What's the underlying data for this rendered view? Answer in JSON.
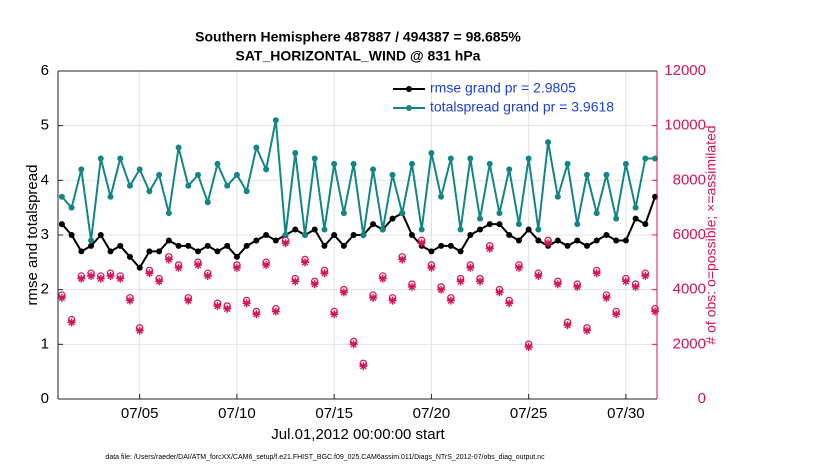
{
  "chart_data": {
    "type": "line",
    "title": "Southern Hemisphere 487887 / 494387 = 98.685%",
    "subtitle": "SAT_HORIZONTAL_WIND @ 831 hPa",
    "x_label": "Jul.01,2012 00:00:00 start",
    "y_label": "rmse and totalspread",
    "y2_label": "# of obs: o=possible; ×=assimilated",
    "footnote": "data file: /Users/raeder/DAI/ATM_forcXX/CAM6_setup/f.e21.FHIST_BGC.f09_025.CAM6assim.011/Diags_NTrS_2012-07/obs_diag_output.nc",
    "grid": true,
    "legend": "upper right",
    "xlim": [
      0.8,
      31.6
    ],
    "xticks": [
      {
        "value": 5,
        "label": "07/05"
      },
      {
        "value": 10,
        "label": "07/10"
      },
      {
        "value": 15,
        "label": "07/15"
      },
      {
        "value": 20,
        "label": "07/20"
      },
      {
        "value": 25,
        "label": "07/25"
      },
      {
        "value": 30,
        "label": "07/30"
      }
    ],
    "ylim": [
      0,
      6
    ],
    "yticks": [
      0,
      1,
      2,
      3,
      4,
      5,
      6
    ],
    "y2lim": [
      0,
      12000
    ],
    "y2ticks": [
      0,
      2000,
      4000,
      6000,
      8000,
      10000,
      12000
    ],
    "x": [
      1.0,
      1.5,
      2.0,
      2.5,
      3.0,
      3.5,
      4.0,
      4.5,
      5.0,
      5.5,
      6.0,
      6.5,
      7.0,
      7.5,
      8.0,
      8.5,
      9.0,
      9.5,
      10.0,
      10.5,
      11.0,
      11.5,
      12.0,
      12.5,
      13.0,
      13.5,
      14.0,
      14.5,
      15.0,
      15.5,
      16.0,
      16.5,
      17.0,
      17.5,
      18.0,
      18.5,
      19.0,
      19.5,
      20.0,
      20.5,
      21.0,
      21.5,
      22.0,
      22.5,
      23.0,
      23.5,
      24.0,
      24.5,
      25.0,
      25.5,
      26.0,
      26.5,
      27.0,
      27.5,
      28.0,
      28.5,
      29.0,
      29.5,
      30.0,
      30.5,
      31.0,
      31.5
    ],
    "series": [
      {
        "name": "rmse grand pr = 2.9805",
        "color": "#000000",
        "marker": "dot",
        "values": [
          3.2,
          3.0,
          2.7,
          2.8,
          3.0,
          2.7,
          2.8,
          2.6,
          2.4,
          2.7,
          2.7,
          2.9,
          2.8,
          2.8,
          2.7,
          2.8,
          2.7,
          2.8,
          2.6,
          2.8,
          2.9,
          3.0,
          2.9,
          3.0,
          3.1,
          3.0,
          3.1,
          2.8,
          3.0,
          2.8,
          3.0,
          3.0,
          3.2,
          3.1,
          3.3,
          3.4,
          3.0,
          2.8,
          2.7,
          2.8,
          2.8,
          2.7,
          3.0,
          3.1,
          3.2,
          3.2,
          3.0,
          2.9,
          3.1,
          2.9,
          2.8,
          2.9,
          2.8,
          2.9,
          2.8,
          2.9,
          3.0,
          2.9,
          2.9,
          3.3,
          3.2,
          3.7
        ]
      },
      {
        "name": "totalspread grand pr = 3.9618",
        "color": "#138585",
        "marker": "dot",
        "values": [
          3.7,
          3.5,
          4.2,
          2.9,
          4.4,
          3.7,
          4.4,
          3.9,
          4.2,
          3.8,
          4.1,
          3.4,
          4.6,
          3.9,
          4.1,
          3.6,
          4.3,
          3.9,
          4.1,
          3.8,
          4.6,
          4.2,
          5.1,
          3.0,
          4.5,
          3.0,
          4.4,
          3.1,
          4.3,
          3.4,
          4.3,
          3.0,
          4.2,
          3.1,
          4.1,
          3.4,
          4.3,
          3.1,
          4.5,
          3.7,
          4.4,
          3.1,
          4.4,
          3.3,
          4.3,
          3.4,
          4.2,
          3.2,
          4.4,
          3.1,
          4.7,
          3.7,
          4.3,
          3.2,
          4.1,
          3.4,
          4.1,
          3.3,
          4.3,
          3.5,
          4.4,
          4.4
        ]
      },
      {
        "color": "#d4145a",
        "axis": "y2",
        "marker": "circle",
        "values": [
          3800,
          2900,
          4500,
          4600,
          4500,
          4600,
          4500,
          3700,
          2600,
          4700,
          4400,
          5200,
          4900,
          3700,
          5000,
          4600,
          3500,
          3400,
          4900,
          3600,
          3200,
          5000,
          3300,
          5800,
          4400,
          5100,
          4300,
          4700,
          3200,
          4000,
          2100,
          1300,
          3800,
          4500,
          3700,
          5200,
          4200,
          5800,
          4900,
          4100,
          3700,
          4400,
          4900,
          4400,
          5600,
          4000,
          3600,
          4900,
          2000,
          4600,
          5800,
          4300,
          2800,
          4200,
          2600,
          4700,
          3800,
          3200,
          4400,
          4200,
          4600,
          3300
        ]
      },
      {
        "color": "#d4145a",
        "axis": "y2",
        "marker": "star",
        "values": [
          3700,
          2800,
          4400,
          4500,
          4400,
          4500,
          4400,
          3600,
          2500,
          4600,
          4300,
          5100,
          4800,
          3600,
          4900,
          4500,
          3400,
          3300,
          4800,
          3500,
          3100,
          4900,
          3200,
          5700,
          4300,
          5000,
          4200,
          4600,
          3100,
          3900,
          2000,
          1200,
          3700,
          4400,
          3600,
          5100,
          4100,
          5700,
          4800,
          4000,
          3600,
          4300,
          4800,
          4300,
          5500,
          3900,
          3500,
          4800,
          1900,
          4500,
          5700,
          4200,
          2700,
          4100,
          2500,
          4600,
          3700,
          3100,
          4300,
          4100,
          4500,
          3200
        ]
      }
    ]
  }
}
